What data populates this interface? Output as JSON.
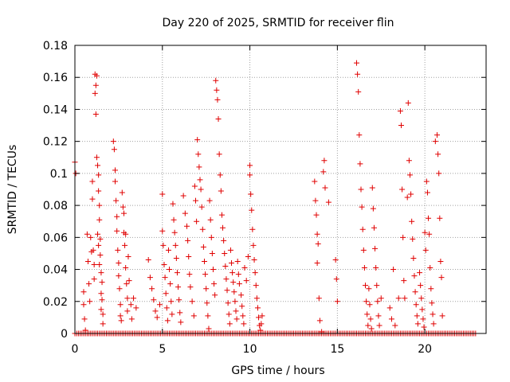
{
  "chart_data": {
    "type": "scatter",
    "title": "Day 220 of 2025, SRMTID for receiver flin",
    "xlabel": "GPS time / hours",
    "ylabel": "SRMTID / TECUs",
    "xlim": [
      0,
      23.5
    ],
    "ylim": [
      0,
      0.18
    ],
    "xticks": [
      0,
      5,
      10,
      15,
      20
    ],
    "xtick_labels": [
      "0",
      "5",
      "10",
      "15",
      "20"
    ],
    "yticks": [
      0,
      0.02,
      0.04,
      0.06,
      0.08,
      0.1,
      0.12,
      0.14,
      0.16,
      0.18
    ],
    "ytick_labels": [
      "0",
      "0.02",
      "0.04",
      "0.06",
      "0.08",
      "0.1",
      "0.12",
      "0.14",
      "0.16",
      "0.18"
    ],
    "grid": true,
    "marker": "+",
    "color": "#e00000",
    "zero_baseline_x": [
      0,
      22.9
    ],
    "series": [
      {
        "name": "SRMTID",
        "points": [
          [
            0.0,
            0.107
          ],
          [
            0.05,
            0.1
          ],
          [
            0.5,
            0.026
          ],
          [
            0.5,
            0.018
          ],
          [
            0.55,
            0.009
          ],
          [
            0.6,
            0.002
          ],
          [
            0.7,
            0.062
          ],
          [
            0.75,
            0.045
          ],
          [
            0.8,
            0.031
          ],
          [
            0.85,
            0.02
          ],
          [
            0.9,
            0.06
          ],
          [
            0.95,
            0.051
          ],
          [
            1.0,
            0.095
          ],
          [
            1.0,
            0.084
          ],
          [
            1.05,
            0.052
          ],
          [
            1.1,
            0.043
          ],
          [
            1.1,
            0.034
          ],
          [
            1.15,
            0.162
          ],
          [
            1.15,
            0.15
          ],
          [
            1.2,
            0.137
          ],
          [
            1.2,
            0.155
          ],
          [
            1.25,
            0.161
          ],
          [
            1.25,
            0.11
          ],
          [
            1.3,
            0.105
          ],
          [
            1.35,
            0.099
          ],
          [
            1.35,
            0.089
          ],
          [
            1.4,
            0.08
          ],
          [
            1.4,
            0.071
          ],
          [
            1.45,
            0.059
          ],
          [
            1.45,
            0.049
          ],
          [
            1.5,
            0.038
          ],
          [
            1.5,
            0.025
          ],
          [
            1.55,
            0.021
          ],
          [
            1.6,
            0.012
          ],
          [
            1.6,
            0.006
          ],
          [
            1.3,
            0.062
          ],
          [
            1.35,
            0.055
          ],
          [
            1.4,
            0.043
          ],
          [
            1.5,
            0.015
          ],
          [
            1.55,
            0.032
          ],
          [
            2.2,
            0.12
          ],
          [
            2.25,
            0.115
          ],
          [
            2.3,
            0.102
          ],
          [
            2.3,
            0.095
          ],
          [
            2.35,
            0.083
          ],
          [
            2.4,
            0.073
          ],
          [
            2.4,
            0.064
          ],
          [
            2.45,
            0.052
          ],
          [
            2.5,
            0.044
          ],
          [
            2.5,
            0.036
          ],
          [
            2.55,
            0.028
          ],
          [
            2.6,
            0.018
          ],
          [
            2.6,
            0.011
          ],
          [
            2.65,
            0.008
          ],
          [
            2.7,
            0.088
          ],
          [
            2.75,
            0.079
          ],
          [
            2.8,
            0.063
          ],
          [
            2.85,
            0.055
          ],
          [
            2.9,
            0.041
          ],
          [
            2.95,
            0.031
          ],
          [
            3.0,
            0.022
          ],
          [
            3.0,
            0.014
          ],
          [
            2.8,
            0.075
          ],
          [
            2.9,
            0.062
          ],
          [
            3.05,
            0.048
          ],
          [
            3.1,
            0.033
          ],
          [
            3.2,
            0.018
          ],
          [
            3.25,
            0.009
          ],
          [
            3.35,
            0.022
          ],
          [
            3.5,
            0.016
          ],
          [
            4.2,
            0.046
          ],
          [
            4.3,
            0.035
          ],
          [
            4.4,
            0.028
          ],
          [
            4.5,
            0.021
          ],
          [
            4.6,
            0.014
          ],
          [
            4.7,
            0.01
          ],
          [
            4.85,
            0.018
          ],
          [
            5.0,
            0.087
          ],
          [
            5.0,
            0.064
          ],
          [
            5.05,
            0.055
          ],
          [
            5.1,
            0.043
          ],
          [
            5.15,
            0.035
          ],
          [
            5.2,
            0.025
          ],
          [
            5.25,
            0.016
          ],
          [
            5.3,
            0.008
          ],
          [
            5.35,
            0.052
          ],
          [
            5.4,
            0.04
          ],
          [
            5.45,
            0.031
          ],
          [
            5.5,
            0.02
          ],
          [
            5.55,
            0.012
          ],
          [
            5.6,
            0.081
          ],
          [
            5.65,
            0.071
          ],
          [
            5.7,
            0.063
          ],
          [
            5.75,
            0.055
          ],
          [
            5.8,
            0.047
          ],
          [
            5.85,
            0.038
          ],
          [
            5.9,
            0.029
          ],
          [
            5.95,
            0.021
          ],
          [
            6.0,
            0.013
          ],
          [
            6.05,
            0.007
          ],
          [
            6.2,
            0.086
          ],
          [
            6.3,
            0.075
          ],
          [
            6.4,
            0.067
          ],
          [
            6.45,
            0.058
          ],
          [
            6.5,
            0.048
          ],
          [
            6.55,
            0.037
          ],
          [
            6.6,
            0.029
          ],
          [
            6.7,
            0.02
          ],
          [
            6.8,
            0.011
          ],
          [
            6.85,
            0.092
          ],
          [
            6.9,
            0.083
          ],
          [
            6.95,
            0.07
          ],
          [
            7.0,
            0.121
          ],
          [
            7.05,
            0.112
          ],
          [
            7.1,
            0.104
          ],
          [
            7.15,
            0.096
          ],
          [
            7.2,
            0.09
          ],
          [
            7.25,
            0.079
          ],
          [
            7.3,
            0.065
          ],
          [
            7.35,
            0.054
          ],
          [
            7.4,
            0.045
          ],
          [
            7.45,
            0.037
          ],
          [
            7.5,
            0.028
          ],
          [
            7.55,
            0.019
          ],
          [
            7.6,
            0.011
          ],
          [
            7.65,
            0.003
          ],
          [
            7.7,
            0.083
          ],
          [
            7.75,
            0.071
          ],
          [
            7.8,
            0.06
          ],
          [
            7.85,
            0.05
          ],
          [
            7.9,
            0.04
          ],
          [
            7.95,
            0.031
          ],
          [
            8.0,
            0.024
          ],
          [
            8.05,
            0.158
          ],
          [
            8.1,
            0.152
          ],
          [
            8.15,
            0.146
          ],
          [
            8.2,
            0.134
          ],
          [
            8.25,
            0.112
          ],
          [
            8.3,
            0.099
          ],
          [
            8.35,
            0.089
          ],
          [
            8.4,
            0.074
          ],
          [
            8.45,
            0.066
          ],
          [
            8.5,
            0.058
          ],
          [
            8.55,
            0.05
          ],
          [
            8.6,
            0.042
          ],
          [
            8.65,
            0.034
          ],
          [
            8.7,
            0.027
          ],
          [
            8.75,
            0.019
          ],
          [
            8.8,
            0.012
          ],
          [
            8.85,
            0.006
          ],
          [
            8.9,
            0.052
          ],
          [
            8.95,
            0.044
          ],
          [
            9.0,
            0.038
          ],
          [
            9.05,
            0.032
          ],
          [
            9.1,
            0.026
          ],
          [
            9.15,
            0.02
          ],
          [
            9.2,
            0.014
          ],
          [
            9.25,
            0.009
          ],
          [
            9.3,
            0.045
          ],
          [
            9.35,
            0.037
          ],
          [
            9.4,
            0.031
          ],
          [
            9.5,
            0.024
          ],
          [
            9.55,
            0.017
          ],
          [
            9.6,
            0.011
          ],
          [
            9.65,
            0.006
          ],
          [
            9.7,
            0.041
          ],
          [
            9.8,
            0.033
          ],
          [
            9.9,
            0.048
          ],
          [
            10.0,
            0.105
          ],
          [
            10.0,
            0.099
          ],
          [
            10.05,
            0.087
          ],
          [
            10.1,
            0.077
          ],
          [
            10.15,
            0.065
          ],
          [
            10.2,
            0.055
          ],
          [
            10.25,
            0.046
          ],
          [
            10.3,
            0.038
          ],
          [
            10.35,
            0.03
          ],
          [
            10.4,
            0.022
          ],
          [
            10.45,
            0.016
          ],
          [
            10.5,
            0.01
          ],
          [
            10.55,
            0.005
          ],
          [
            10.6,
            0.002
          ],
          [
            10.65,
            0.006
          ],
          [
            10.7,
            0.011
          ],
          [
            13.7,
            0.095
          ],
          [
            13.75,
            0.083
          ],
          [
            13.8,
            0.074
          ],
          [
            13.85,
            0.062
          ],
          [
            13.85,
            0.044
          ],
          [
            13.9,
            0.056
          ],
          [
            13.95,
            0.022
          ],
          [
            14.0,
            0.008
          ],
          [
            14.1,
            0.001
          ],
          [
            14.2,
            0.101
          ],
          [
            14.25,
            0.108
          ],
          [
            14.3,
            0.091
          ],
          [
            14.5,
            0.082
          ],
          [
            14.9,
            0.046
          ],
          [
            14.95,
            0.034
          ],
          [
            15.0,
            0.02
          ],
          [
            16.1,
            0.169
          ],
          [
            16.15,
            0.162
          ],
          [
            16.2,
            0.151
          ],
          [
            16.25,
            0.124
          ],
          [
            16.3,
            0.106
          ],
          [
            16.35,
            0.09
          ],
          [
            16.4,
            0.079
          ],
          [
            16.45,
            0.065
          ],
          [
            16.5,
            0.052
          ],
          [
            16.55,
            0.041
          ],
          [
            16.6,
            0.03
          ],
          [
            16.65,
            0.02
          ],
          [
            16.7,
            0.012
          ],
          [
            16.75,
            0.005
          ],
          [
            16.8,
            0.028
          ],
          [
            16.85,
            0.018
          ],
          [
            16.9,
            0.009
          ],
          [
            16.95,
            0.003
          ],
          [
            17.0,
            0.091
          ],
          [
            17.05,
            0.078
          ],
          [
            17.1,
            0.066
          ],
          [
            17.15,
            0.053
          ],
          [
            17.2,
            0.041
          ],
          [
            17.25,
            0.03
          ],
          [
            17.3,
            0.02
          ],
          [
            17.35,
            0.011
          ],
          [
            17.4,
            0.005
          ],
          [
            17.5,
            0.022
          ],
          [
            18.0,
            0.016
          ],
          [
            18.1,
            0.009
          ],
          [
            18.2,
            0.04
          ],
          [
            18.3,
            0.005
          ],
          [
            18.5,
            0.022
          ],
          [
            18.6,
            0.139
          ],
          [
            18.65,
            0.13
          ],
          [
            18.7,
            0.09
          ],
          [
            18.75,
            0.06
          ],
          [
            18.8,
            0.033
          ],
          [
            18.85,
            0.022
          ],
          [
            19.0,
            0.085
          ],
          [
            19.05,
            0.144
          ],
          [
            19.1,
            0.108
          ],
          [
            19.15,
            0.099
          ],
          [
            19.2,
            0.087
          ],
          [
            19.25,
            0.07
          ],
          [
            19.3,
            0.059
          ],
          [
            19.35,
            0.047
          ],
          [
            19.4,
            0.036
          ],
          [
            19.45,
            0.026
          ],
          [
            19.5,
            0.018
          ],
          [
            19.55,
            0.011
          ],
          [
            19.6,
            0.006
          ],
          [
            19.7,
            0.038
          ],
          [
            19.75,
            0.03
          ],
          [
            19.8,
            0.022
          ],
          [
            19.85,
            0.015
          ],
          [
            19.9,
            0.009
          ],
          [
            19.95,
            0.004
          ],
          [
            20.0,
            0.063
          ],
          [
            20.05,
            0.052
          ],
          [
            20.1,
            0.095
          ],
          [
            20.15,
            0.088
          ],
          [
            20.2,
            0.072
          ],
          [
            20.25,
            0.062
          ],
          [
            20.3,
            0.041
          ],
          [
            20.35,
            0.028
          ],
          [
            20.4,
            0.019
          ],
          [
            20.45,
            0.012
          ],
          [
            20.5,
            0.006
          ],
          [
            20.6,
            0.12
          ],
          [
            20.7,
            0.124
          ],
          [
            20.75,
            0.112
          ],
          [
            20.8,
            0.1
          ],
          [
            20.85,
            0.072
          ],
          [
            20.9,
            0.045
          ],
          [
            20.95,
            0.035
          ],
          [
            21.0,
            0.011
          ]
        ]
      }
    ]
  }
}
